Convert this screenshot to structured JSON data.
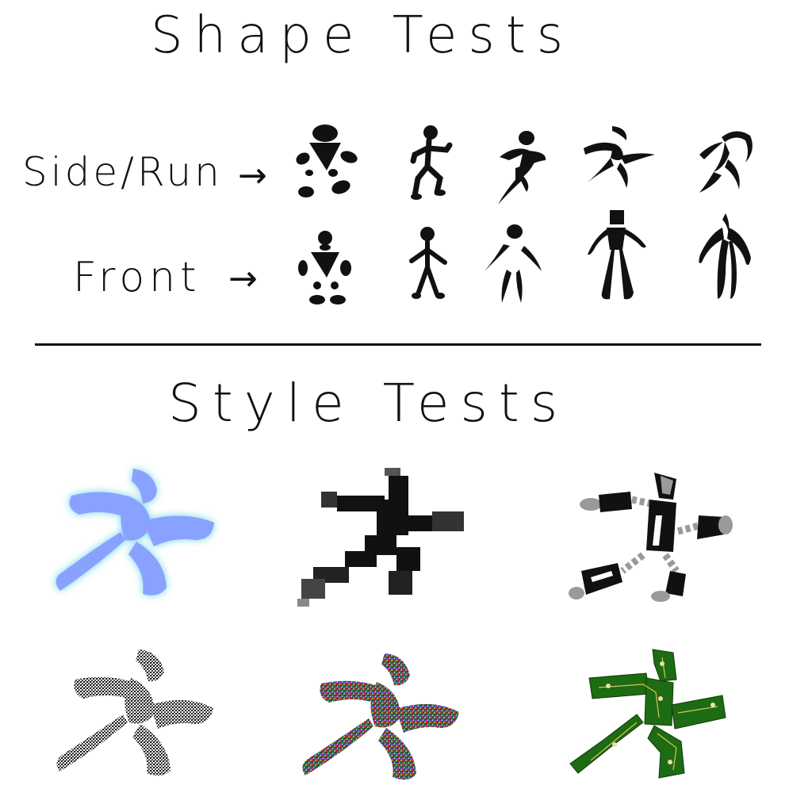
{
  "titles": {
    "shape_tests": "Shape Tests",
    "style_tests": "Style Tests"
  },
  "rows": {
    "side_run": "Side/Run",
    "front": "Front",
    "arrow_glyph": "→"
  },
  "colors": {
    "ink": "#111111",
    "glow_fill": "#8aa2ff",
    "glow_edge": "#5fd0e8",
    "robot_gray": "#9a9a9a",
    "circuit_green": "#1d6b12",
    "circuit_trace": "#d9c55a"
  },
  "figures": {
    "shape_side": [
      "blob-runner-icon",
      "stick-runner-icon",
      "brush-runner-icon",
      "dash-runner-icon",
      "curve-runner-icon"
    ],
    "shape_front": [
      "blob-front-icon",
      "stick-front-icon",
      "brush-front-icon",
      "block-front-icon",
      "curve-front-icon"
    ],
    "style": [
      "glow-runner-icon",
      "pixel-runner-icon",
      "robot-runner-icon",
      "noise-gray-runner-icon",
      "noise-color-runner-icon",
      "circuit-runner-icon"
    ]
  }
}
